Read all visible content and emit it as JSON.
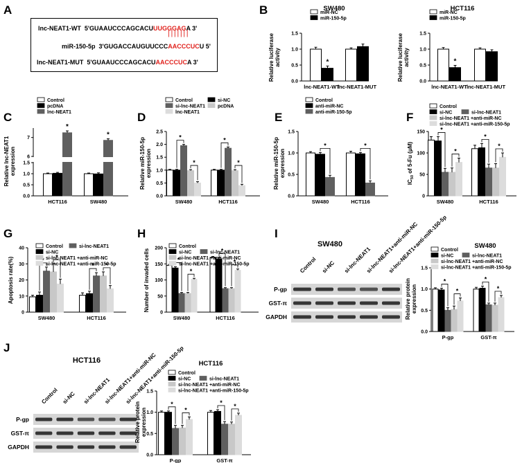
{
  "panels": {
    "A": {
      "letter": "A",
      "wt_label": "lnc-NEAT1-WT",
      "wt_seq": "5'GUAAUCCCAGCACU",
      "wt_seed": "UUGGGAG",
      "wt_end": "A 3'",
      "mir_label": "miR-150-5p",
      "mir_seq": "3'GUGACCAUGUUCCC",
      "mir_seed": "AACCCUC",
      "mir_end": "U 5'",
      "mut_label": "lnc-NEAT1-MUT",
      "mut_seq": "5'GUAAUCCCAGCACU",
      "mut_seed": "AACCCUC",
      "mut_end": "A 3'",
      "pairing": "|||||||"
    },
    "B": "B",
    "C": "C",
    "D": "D",
    "E": "E",
    "F": "F",
    "G": "G",
    "H": "H",
    "I": "I",
    "J": "J"
  },
  "star": "*",
  "blots": {
    "I": {
      "title": "SW480",
      "lanes": [
        "Control",
        "si-NC",
        "si-lnc-NEAT1",
        "si-lnc-NEAT1+anti-miR-NC",
        "si-lnc-NEAT1+anti-miR-150-5p"
      ],
      "rows": [
        "P-gp",
        "GST-π",
        "GAPDH"
      ]
    },
    "J": {
      "title": "HCT116",
      "lanes": [
        "Control",
        "si-NC",
        "si-lnc-NEAT1",
        "si-lnc-NEAT1+anti-miR-NC",
        "si-lnc-NEAT1+anti-miR-150-5p"
      ],
      "rows": [
        "P-gp",
        "GST-π",
        "GAPDH"
      ]
    }
  },
  "colors": {
    "white": "#ffffff",
    "black": "#000000",
    "dark_gray": "#5f5f5f",
    "light_gray": "#c8c8c8",
    "lighter_gray": "#dcdcdc",
    "red": "#e0201b"
  },
  "chart_data": [
    {
      "id": "B1",
      "type": "bar",
      "title": "SW480",
      "ylabel": "Relative luciferase activity",
      "ylim": [
        0,
        1.5
      ],
      "yticks": [
        "0.0",
        "0.5",
        "1.0",
        "1.5"
      ],
      "categories": [
        "lnc-NEAT1-WT",
        "lnc-NEAT1-MUT"
      ],
      "legend": [
        "miR-NC",
        "miR-150-5p"
      ],
      "legend_position": "top-left",
      "series": [
        {
          "name": "miR-NC",
          "values": [
            1.0,
            1.0
          ],
          "errors": [
            0.06,
            0.04
          ]
        },
        {
          "name": "miR-150-5p",
          "values": [
            0.4,
            1.08
          ],
          "errors": [
            0.07,
            0.08
          ]
        }
      ],
      "significance": [
        {
          "category": 0,
          "series": 1
        }
      ]
    },
    {
      "id": "B2",
      "type": "bar",
      "title": "HCT116",
      "ylabel": "Relative luciferase activity",
      "ylim": [
        0,
        1.5
      ],
      "yticks": [
        "0.0",
        "0.5",
        "1.0",
        "1.5"
      ],
      "categories": [
        "lnc-NEAT1-WT",
        "lnc-NEAT1-MUT"
      ],
      "legend": [
        "miR-NC",
        "miR-150-5p"
      ],
      "legend_position": "top-left",
      "series": [
        {
          "name": "miR-NC",
          "values": [
            1.0,
            1.0
          ],
          "errors": [
            0.05,
            0.04
          ]
        },
        {
          "name": "miR-150-5p",
          "values": [
            0.42,
            0.92
          ],
          "errors": [
            0.07,
            0.06
          ]
        }
      ],
      "significance": [
        {
          "category": 0,
          "series": 1
        }
      ]
    },
    {
      "id": "C",
      "type": "bar",
      "title": "",
      "ylabel": "Relative lnc-NEAT1 expression",
      "ylim": [
        0,
        7.5
      ],
      "axis_break": [
        1.5,
        6.0
      ],
      "yticks": [
        "0.0",
        "0.5",
        "1.0",
        "1.5",
        "6",
        "7"
      ],
      "categories": [
        "HCT116",
        "SW480"
      ],
      "legend": [
        "Control",
        "pcDNA",
        "lnc-NEAT1"
      ],
      "legend_position": "top-left",
      "series": [
        {
          "name": "Control",
          "values": [
            1.0,
            1.0
          ],
          "errors": [
            0.03,
            0.03
          ]
        },
        {
          "name": "pcDNA",
          "values": [
            1.02,
            0.99
          ],
          "errors": [
            0.04,
            0.05
          ]
        },
        {
          "name": "lnc-NEAT1",
          "values": [
            7.25,
            6.85
          ],
          "errors": [
            0.1,
            0.08
          ]
        }
      ],
      "significance": [
        {
          "category": 0,
          "series": 2
        },
        {
          "category": 1,
          "series": 2
        }
      ]
    },
    {
      "id": "D",
      "type": "bar",
      "title": "",
      "ylabel": "Relative miR-150-5p expression",
      "ylim": [
        0,
        2.5
      ],
      "yticks": [
        "0.0",
        "0.5",
        "1.0",
        "1.5",
        "2.0",
        "2.5"
      ],
      "categories": [
        "SW480",
        "HCT116"
      ],
      "legend": [
        "Control",
        "si-NC",
        "si-lnc-NEAT1",
        "pcDNA",
        "lnc-NEAT1"
      ],
      "legend_position": "top-left",
      "series": [
        {
          "name": "Control",
          "values": [
            1.0,
            1.0
          ],
          "errors": [
            0.03,
            0.03
          ]
        },
        {
          "name": "si-NC",
          "values": [
            1.0,
            1.0
          ],
          "errors": [
            0.03,
            0.03
          ]
        },
        {
          "name": "si-lnc-NEAT1",
          "values": [
            1.95,
            1.85
          ],
          "errors": [
            0.05,
            0.05
          ]
        },
        {
          "name": "pcDNA",
          "values": [
            0.98,
            0.98
          ],
          "errors": [
            0.04,
            0.04
          ]
        },
        {
          "name": "lnc-NEAT1",
          "values": [
            0.5,
            0.4
          ],
          "errors": [
            0.05,
            0.05
          ]
        }
      ],
      "significance_brackets": [
        {
          "category": 0,
          "from": 1,
          "to": 2
        },
        {
          "category": 0,
          "from": 3,
          "to": 4
        },
        {
          "category": 1,
          "from": 1,
          "to": 2
        },
        {
          "category": 1,
          "from": 3,
          "to": 4
        }
      ]
    },
    {
      "id": "E",
      "type": "bar",
      "title": "",
      "ylabel": "Relative miR-150-5p expression",
      "ylim": [
        0,
        1.5
      ],
      "yticks": [
        "0.0",
        "0.5",
        "1.0",
        "1.5"
      ],
      "categories": [
        "SW480",
        "HCT116"
      ],
      "legend": [
        "Control",
        "anti-miR-NC",
        "anti-miR-150-5p"
      ],
      "legend_position": "top-left",
      "series": [
        {
          "name": "Control",
          "values": [
            1.0,
            1.0
          ],
          "errors": [
            0.03,
            0.04
          ]
        },
        {
          "name": "anti-miR-NC",
          "values": [
            0.97,
            0.98
          ],
          "errors": [
            0.04,
            0.03
          ]
        },
        {
          "name": "anti-miR-150-5p",
          "values": [
            0.43,
            0.3
          ],
          "errors": [
            0.05,
            0.05
          ]
        }
      ],
      "significance_brackets": [
        {
          "category": 0,
          "from": 1,
          "to": 2
        },
        {
          "category": 1,
          "from": 1,
          "to": 2
        }
      ]
    },
    {
      "id": "F",
      "type": "bar",
      "title": "",
      "ylabel": "IC50 of 5-Fu (μM)",
      "ylim": [
        0,
        150
      ],
      "yticks": [
        "0",
        "50",
        "100",
        "150"
      ],
      "categories": [
        "SW480",
        "HCT116"
      ],
      "legend": [
        "Control",
        "si-NC",
        "si-lnc-NEAT1",
        "si-lnc-NEAT1 +anti-miR-NC",
        "si-lnc-NEAT1 +anti-miR-150-5p"
      ],
      "legend_position": "top-left",
      "series": [
        {
          "name": "Control",
          "values": [
            130,
            110
          ],
          "errors": [
            8,
            8
          ]
        },
        {
          "name": "si-NC",
          "values": [
            128,
            112
          ],
          "errors": [
            10,
            10
          ]
        },
        {
          "name": "si-lnc-NEAT1",
          "values": [
            55,
            65
          ],
          "errors": [
            9,
            9
          ]
        },
        {
          "name": "si-lnc-NEAT1 +anti-miR-NC",
          "values": [
            55,
            65
          ],
          "errors": [
            10,
            10
          ]
        },
        {
          "name": "si-lnc-NEAT1 +anti-miR-150-5p",
          "values": [
            78,
            90
          ],
          "errors": [
            10,
            10
          ]
        }
      ],
      "significance_brackets": [
        {
          "category": 0,
          "from": 1,
          "to": 2
        },
        {
          "category": 0,
          "from": 3,
          "to": 4
        },
        {
          "category": 1,
          "from": 1,
          "to": 2
        },
        {
          "category": 1,
          "from": 3,
          "to": 4
        }
      ]
    },
    {
      "id": "G",
      "type": "bar",
      "title": "",
      "ylabel": "Apoptosis rate(%)",
      "ylim": [
        0,
        40
      ],
      "yticks": [
        "0",
        "10",
        "20",
        "30",
        "40"
      ],
      "categories": [
        "SW480",
        "HCT116"
      ],
      "legend": [
        "Control",
        "si-NC",
        "si-lnc-NEAT1",
        "si-lnc-NEAT1 +anti-miR-NC",
        "si-lnc-NEAT1 +anti-miR-150-5p"
      ],
      "legend_position": "top-left",
      "series": [
        {
          "name": "Control",
          "values": [
            9.5,
            10.5
          ],
          "errors": [
            1,
            1.5
          ]
        },
        {
          "name": "si-NC",
          "values": [
            10.5,
            11.5
          ],
          "errors": [
            2,
            1.5
          ]
        },
        {
          "name": "si-lnc-NEAT1",
          "values": [
            25.5,
            22.5
          ],
          "errors": [
            2.5,
            2
          ]
        },
        {
          "name": "si-lnc-NEAT1 +anti-miR-NC",
          "values": [
            25,
            22.5
          ],
          "errors": [
            5,
            2.5
          ]
        },
        {
          "name": "si-lnc-NEAT1 +anti-miR-150-5p",
          "values": [
            17.5,
            14.5
          ],
          "errors": [
            3,
            2
          ]
        }
      ],
      "significance_brackets": [
        {
          "category": 0,
          "from": 1,
          "to": 2
        },
        {
          "category": 0,
          "from": 3,
          "to": 4
        },
        {
          "category": 1,
          "from": 1,
          "to": 2
        },
        {
          "category": 1,
          "from": 3,
          "to": 4
        }
      ]
    },
    {
      "id": "H",
      "type": "bar",
      "title": "",
      "ylabel": "Number of invaded cells",
      "ylim": [
        0,
        200
      ],
      "yticks": [
        "0",
        "50",
        "100",
        "150",
        "200"
      ],
      "categories": [
        "SW480",
        "HCT116"
      ],
      "legend": [
        "Control",
        "si-NC",
        "si-lnc-NEAT1",
        "si-lnc-NEAT1 +anti-miR-NC",
        "si-lnc-NEAT1 +anti-miR-150-5p"
      ],
      "legend_position": "top-left",
      "series": [
        {
          "name": "Control",
          "values": [
            145,
            170
          ],
          "errors": [
            3,
            3
          ]
        },
        {
          "name": "si-NC",
          "values": [
            137,
            165
          ],
          "errors": [
            4,
            4
          ]
        },
        {
          "name": "si-lnc-NEAT1",
          "values": [
            58,
            73
          ],
          "errors": [
            3,
            3
          ]
        },
        {
          "name": "si-lnc-NEAT1 +anti-miR-NC",
          "values": [
            58,
            73
          ],
          "errors": [
            3,
            3
          ]
        },
        {
          "name": "si-lnc-NEAT1 +anti-miR-150-5p",
          "values": [
            102,
            130
          ],
          "errors": [
            3,
            4
          ]
        }
      ],
      "significance_brackets": [
        {
          "category": 0,
          "from": 1,
          "to": 2
        },
        {
          "category": 0,
          "from": 3,
          "to": 4
        },
        {
          "category": 1,
          "from": 1,
          "to": 2
        },
        {
          "category": 1,
          "from": 3,
          "to": 4
        }
      ]
    },
    {
      "id": "I",
      "type": "bar",
      "title": "SW480",
      "ylabel": "Relative protein expression",
      "ylim": [
        0,
        1.5
      ],
      "yticks": [
        "0.0",
        "0.5",
        "1.0",
        "1.5"
      ],
      "categories": [
        "P-gp",
        "GST-π"
      ],
      "legend": [
        "Control",
        "si-NC",
        "si-lnc-NEAT1",
        "si-lnc-NEAT1 +anti-miR-NC",
        "si-lnc-NEAT1 +anti-miR-150-5p"
      ],
      "legend_position": "top-left",
      "series": [
        {
          "name": "Control",
          "values": [
            1.0,
            1.0
          ],
          "errors": [
            0.03,
            0.04
          ]
        },
        {
          "name": "si-NC",
          "values": [
            0.98,
            1.02
          ],
          "errors": [
            0.04,
            0.05
          ]
        },
        {
          "name": "si-lnc-NEAT1",
          "values": [
            0.5,
            0.63
          ],
          "errors": [
            0.06,
            0.04
          ]
        },
        {
          "name": "si-lnc-NEAT1 +anti-miR-NC",
          "values": [
            0.52,
            0.62
          ],
          "errors": [
            0.08,
            0.05
          ]
        },
        {
          "name": "si-lnc-NEAT1 +anti-miR-150-5p",
          "values": [
            0.72,
            0.8
          ],
          "errors": [
            0.07,
            0.05
          ]
        }
      ],
      "significance_brackets": [
        {
          "category": 0,
          "from": 1,
          "to": 2
        },
        {
          "category": 0,
          "from": 3,
          "to": 4
        },
        {
          "category": 1,
          "from": 1,
          "to": 2
        },
        {
          "category": 1,
          "from": 3,
          "to": 4
        }
      ]
    },
    {
      "id": "J",
      "type": "bar",
      "title": "HCT116",
      "ylabel": "Relative protein expression",
      "ylim": [
        0,
        1.5
      ],
      "yticks": [
        "0.0",
        "0.5",
        "1.0",
        "1.5"
      ],
      "categories": [
        "P-gp",
        "GST-π"
      ],
      "legend": [
        "Control",
        "si-NC",
        "si-lnc-NEAT1",
        "si-lnc-NEAT1 +anti-miR-NC",
        "si-lnc-NEAT1 +anti-miR-150-5p"
      ],
      "legend_position": "top-left",
      "series": [
        {
          "name": "Control",
          "values": [
            1.0,
            1.0
          ],
          "errors": [
            0.03,
            0.04
          ]
        },
        {
          "name": "si-NC",
          "values": [
            1.0,
            1.02
          ],
          "errors": [
            0.03,
            0.04
          ]
        },
        {
          "name": "si-lnc-NEAT1",
          "values": [
            0.62,
            0.72
          ],
          "errors": [
            0.07,
            0.06
          ]
        },
        {
          "name": "si-lnc-NEAT1 +anti-miR-NC",
          "values": [
            0.63,
            0.72
          ],
          "errors": [
            0.06,
            0.05
          ]
        },
        {
          "name": "si-lnc-NEAT1 +anti-miR-150-5p",
          "values": [
            0.83,
            0.93
          ],
          "errors": [
            0.06,
            0.05
          ]
        }
      ],
      "significance_brackets": [
        {
          "category": 0,
          "from": 1,
          "to": 2
        },
        {
          "category": 0,
          "from": 3,
          "to": 4
        },
        {
          "category": 1,
          "from": 1,
          "to": 2
        },
        {
          "category": 1,
          "from": 3,
          "to": 4
        }
      ]
    }
  ]
}
